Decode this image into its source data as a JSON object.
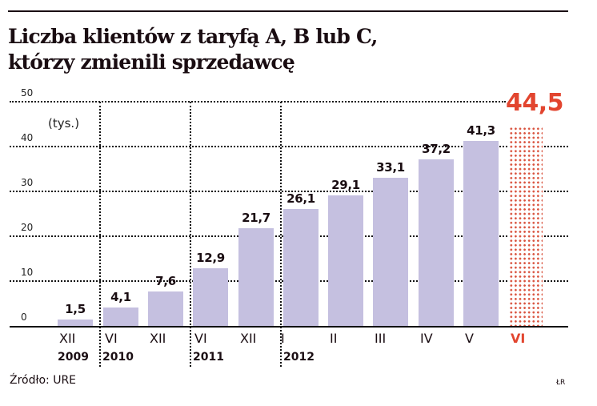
{
  "header": {
    "title_line1": "Liczba klientów z taryfą A, B lub C,",
    "title_line2": "którzy zmienili sprzedawcę"
  },
  "footer": {
    "source": "Źródło: URE",
    "credit": "ŁR"
  },
  "colors": {
    "bar": "#c5c0e0",
    "highlight": "#e2452f",
    "text": "#1a0d12"
  },
  "chart_data": {
    "type": "bar",
    "title": "Liczba klientów z taryfą A, B lub C, którzy zmienili sprzedawcę",
    "xlabel": "",
    "ylabel": "(tys.)",
    "unit": "(tys.)",
    "ylim": [
      0,
      50
    ],
    "yticks": [
      "0",
      "10",
      "20",
      "30",
      "40",
      "50"
    ],
    "grid": true,
    "categories": [
      "XII 2009",
      "VI 2010",
      "XII 2010",
      "VI 2011",
      "XII 2011",
      "I 2012",
      "II 2012",
      "III 2012",
      "IV 2012",
      "V 2012",
      "VI 2012"
    ],
    "month_labels": [
      "XII",
      "VI",
      "XII",
      "VI",
      "XII",
      "I",
      "II",
      "III",
      "IV",
      "V",
      "VI"
    ],
    "year_labels": [
      {
        "label": "2009",
        "index": 0
      },
      {
        "label": "2010",
        "index": 1
      },
      {
        "label": "2011",
        "index": 3
      },
      {
        "label": "2012",
        "index": 5
      }
    ],
    "values": [
      1.5,
      4.1,
      7.6,
      12.9,
      21.7,
      26.1,
      29.1,
      33.1,
      37.2,
      41.3,
      44.5
    ],
    "value_labels": [
      "1,5",
      "4,1",
      "7,6",
      "12,9",
      "21,7",
      "26,1",
      "29,1",
      "33,1",
      "37,2",
      "41,3",
      "44,5"
    ],
    "highlighted_index": 10,
    "highlight_note": "Last bar (VI 2012) shown with red dotted pattern and large red label"
  }
}
